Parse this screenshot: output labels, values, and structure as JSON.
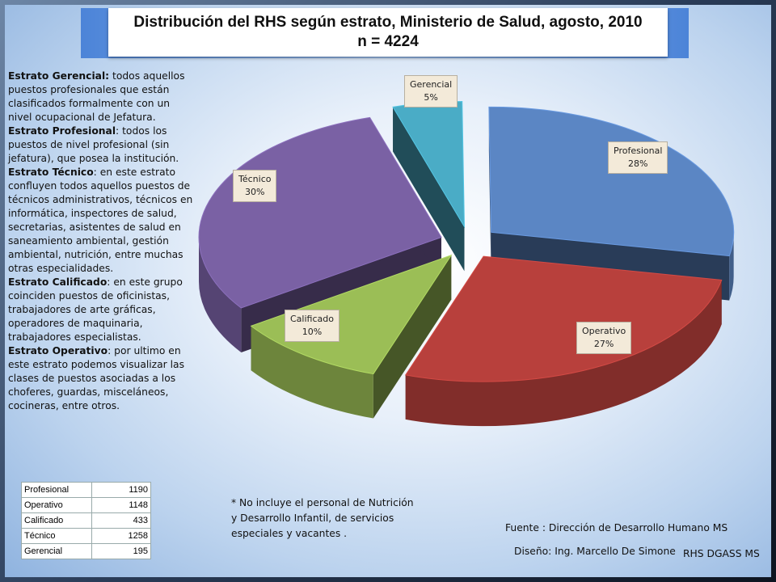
{
  "title": {
    "line1": "Distribución del RHS según estrato, Ministerio de Salud, agosto, 2010",
    "line2": "n = 4224"
  },
  "definitions": [
    {
      "term": "Estrato Gerencial:",
      "text": " todos aquellos puestos profesionales que están clasificados formalmente con un nivel ocupacional de Jefatura."
    },
    {
      "term": "Estrato Profesional",
      "text": ": todos los puestos de nivel profesional (sin jefatura), que posea la institución."
    },
    {
      "term": "Estrato Técnico",
      "text": ": en este estrato confluyen todos aquellos puestos de técnicos administrativos, técnicos en informática, inspectores de salud, secretarias, asistentes de salud en saneamiento ambiental, gestión ambiental, nutrición, entre muchas otras especialidades."
    },
    {
      "term": "Estrato Calificado",
      "text": ": en este grupo coinciden puestos de oficinistas, trabajadores de arte gráficas, operadores de maquinaria, trabajadores especialistas."
    },
    {
      "term": "Estrato Operativo",
      "text": ": por ultimo en este estrato podemos visualizar las clases de puestos asociadas a los choferes, guardas, misceláneos, cocineras, entre otros."
    }
  ],
  "chart_data": {
    "type": "pie",
    "title": "Distribución del RHS según estrato, Ministerio de Salud, agosto, 2010",
    "n": 4224,
    "slices": [
      {
        "label": "Profesional",
        "value": 1190,
        "percent": "28%",
        "color": "#5b86c4"
      },
      {
        "label": "Operativo",
        "value": 1148,
        "percent": "27%",
        "color": "#b8403c"
      },
      {
        "label": "Calificado",
        "value": 433,
        "percent": "10%",
        "color": "#9bbe56"
      },
      {
        "label": "Técnico",
        "value": 1258,
        "percent": "30%",
        "color": "#7a61a4"
      },
      {
        "label": "Gerencial",
        "value": 195,
        "percent": "5%",
        "color": "#4aacc6"
      }
    ]
  },
  "table": {
    "rows": [
      {
        "category": "Profesional",
        "value": "1190"
      },
      {
        "category": "Operativo",
        "value": "1148"
      },
      {
        "category": "Calificado",
        "value": "433"
      },
      {
        "category": "Técnico",
        "value": "1258"
      },
      {
        "category": "Gerencial",
        "value": "195"
      }
    ]
  },
  "footnote": "* No incluye el personal de Nutrición y Desarrollo Infantil, de servicios especiales y vacantes .",
  "source": "Fuente : Dirección de Desarrollo Humano MS",
  "design": "Diseño: Ing. Marcello De Simone",
  "dept": "RHS DGASS MS"
}
